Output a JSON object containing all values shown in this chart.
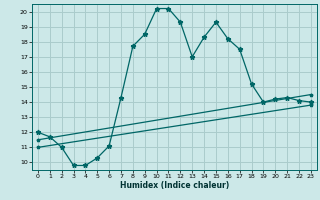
{
  "xlabel": "Humidex (Indice chaleur)",
  "bg_color": "#cce8e8",
  "grid_color": "#aacccc",
  "line_color": "#006666",
  "xlim": [
    -0.5,
    23.5
  ],
  "ylim": [
    9.5,
    20.5
  ],
  "xticks": [
    0,
    1,
    2,
    3,
    4,
    5,
    6,
    7,
    8,
    9,
    10,
    11,
    12,
    13,
    14,
    15,
    16,
    17,
    18,
    19,
    20,
    21,
    22,
    23
  ],
  "yticks": [
    10,
    11,
    12,
    13,
    14,
    15,
    16,
    17,
    18,
    19,
    20
  ],
  "line1_x": [
    0,
    1,
    2,
    3,
    4,
    5,
    6,
    7,
    8,
    9,
    10,
    11,
    12,
    13,
    14,
    15,
    16,
    17,
    18,
    19,
    20,
    21,
    22,
    23
  ],
  "line1_y": [
    12.0,
    11.7,
    11.0,
    9.8,
    9.8,
    10.3,
    11.1,
    14.3,
    17.7,
    18.5,
    20.2,
    20.2,
    19.3,
    17.0,
    18.3,
    19.3,
    18.2,
    17.5,
    15.2,
    14.0,
    14.2,
    14.3,
    14.1,
    14.0
  ],
  "line2_x": [
    0,
    23
  ],
  "line2_y": [
    11.5,
    14.5
  ],
  "line3_x": [
    0,
    23
  ],
  "line3_y": [
    11.0,
    13.8
  ]
}
